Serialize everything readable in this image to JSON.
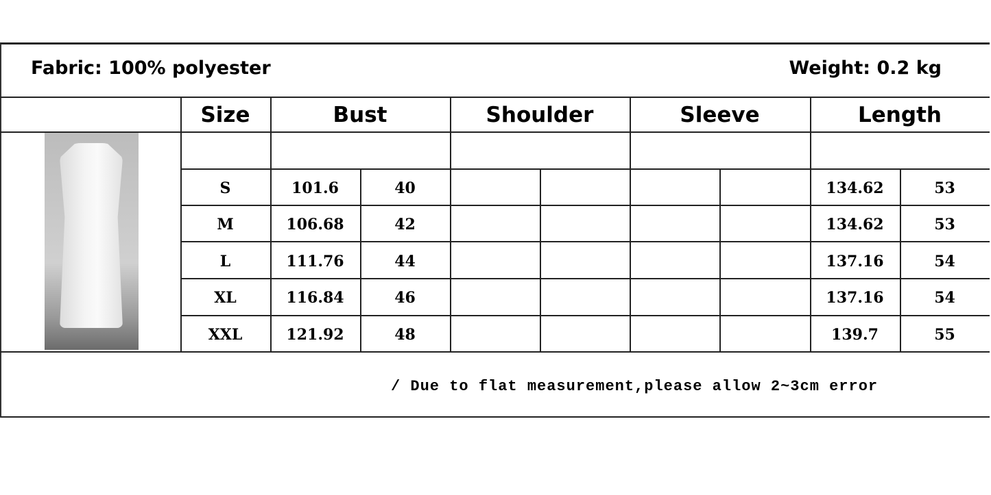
{
  "header": {
    "fabric": "Fabric: 100% polyester",
    "weight": "Weight: 0.2 kg"
  },
  "columns": [
    "Size",
    "Bust",
    "Shoulder",
    "Sleeve",
    "Length"
  ],
  "rows": [
    {
      "size": "S",
      "bust_cm": "101.6",
      "bust_in": "40",
      "shoulder_cm": "",
      "shoulder_in": "",
      "sleeve_cm": "",
      "sleeve_in": "",
      "length_cm": "134.62",
      "length_in": "53"
    },
    {
      "size": "M",
      "bust_cm": "106.68",
      "bust_in": "42",
      "shoulder_cm": "",
      "shoulder_in": "",
      "sleeve_cm": "",
      "sleeve_in": "",
      "length_cm": "134.62",
      "length_in": "53"
    },
    {
      "size": "L",
      "bust_cm": "111.76",
      "bust_in": "44",
      "shoulder_cm": "",
      "shoulder_in": "",
      "sleeve_cm": "",
      "sleeve_in": "",
      "length_cm": "137.16",
      "length_in": "54"
    },
    {
      "size": "XL",
      "bust_cm": "116.84",
      "bust_in": "46",
      "shoulder_cm": "",
      "shoulder_in": "",
      "sleeve_cm": "",
      "sleeve_in": "",
      "length_cm": "137.16",
      "length_in": "54"
    },
    {
      "size": "XXL",
      "bust_cm": "121.92",
      "bust_in": "48",
      "shoulder_cm": "",
      "shoulder_in": "",
      "sleeve_cm": "",
      "sleeve_in": "",
      "length_cm": "139.7",
      "length_in": "55"
    }
  ],
  "footer": {
    "note": "/ Due to flat measurement,please allow 2~3cm error"
  }
}
